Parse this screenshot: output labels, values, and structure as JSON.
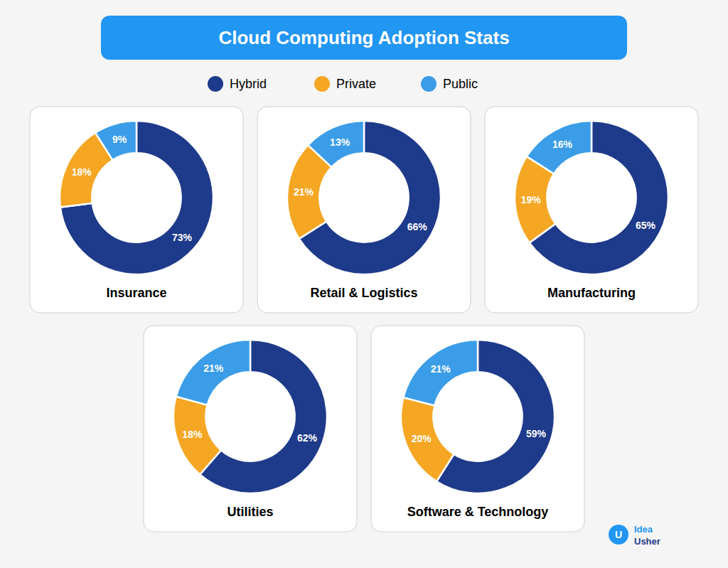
{
  "title": "Cloud Computing Adoption Stats",
  "annotations": [
    "U",
    "Idea",
    "Usher"
  ],
  "chart_data": [
    {
      "type": "pie",
      "title": "Insurance",
      "categories": [
        "Hybrid",
        "Private",
        "Public"
      ],
      "values": [
        73,
        18,
        9
      ],
      "value_labels": [
        "73%",
        "18%",
        "9%"
      ],
      "colors": [
        "#1e3a8a",
        "#f5a623",
        "#3b9de8"
      ],
      "data_labels": true,
      "legend": "top"
    },
    {
      "type": "pie",
      "title": "Retail & Logistics",
      "categories": [
        "Hybrid",
        "Private",
        "Public"
      ],
      "values": [
        66,
        21,
        13
      ],
      "value_labels": [
        "66%",
        "21%",
        "13%"
      ],
      "colors": [
        "#1e3a8a",
        "#f5a623",
        "#3b9de8"
      ],
      "data_labels": true
    },
    {
      "type": "pie",
      "title": "Manufacturing",
      "categories": [
        "Hybrid",
        "Private",
        "Public"
      ],
      "values": [
        65,
        19,
        16
      ],
      "value_labels": [
        "65%",
        "19%",
        "16%"
      ],
      "colors": [
        "#1e3a8a",
        "#f5a623",
        "#3b9de8"
      ],
      "data_labels": true
    },
    {
      "type": "pie",
      "title": "Utilities",
      "categories": [
        "Hybrid",
        "Private",
        "Public"
      ],
      "values": [
        62,
        18,
        21
      ],
      "value_labels": [
        "62%",
        "18%",
        "21%"
      ],
      "colors": [
        "#1e3a8a",
        "#f5a623",
        "#3b9de8"
      ],
      "data_labels": true
    },
    {
      "type": "pie",
      "title": "Software & Technology",
      "categories": [
        "Hybrid",
        "Private",
        "Public"
      ],
      "values": [
        59,
        20,
        21
      ],
      "value_labels": [
        "59%",
        "20%",
        "21%"
      ],
      "colors": [
        "#1e3a8a",
        "#f5a623",
        "#3b9de8"
      ],
      "data_labels": true
    }
  ]
}
